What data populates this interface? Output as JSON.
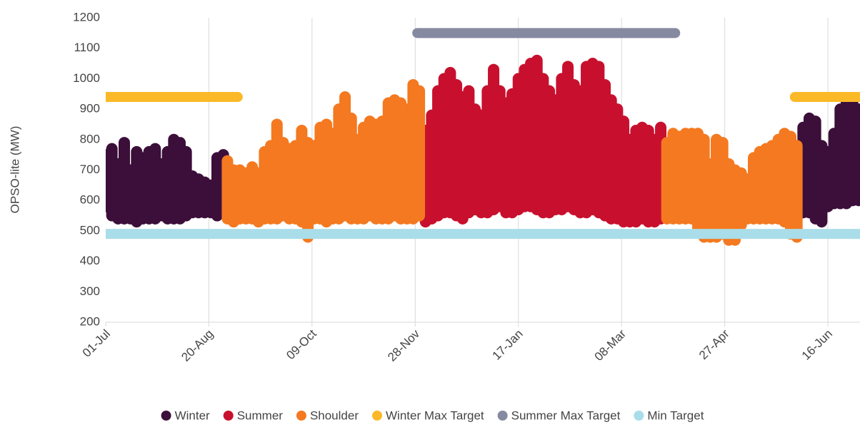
{
  "chart_data": {
    "type": "scatter",
    "y_label": "OPSO-lite (MW)",
    "xlim": [
      0,
      365
    ],
    "xticks": [
      {
        "value": 0,
        "label": "01-Jul"
      },
      {
        "value": 50,
        "label": "20-Aug"
      },
      {
        "value": 100,
        "label": "09-Oct"
      },
      {
        "value": 150,
        "label": "28-Nov"
      },
      {
        "value": 200,
        "label": "17-Jan"
      },
      {
        "value": 250,
        "label": "08-Mar"
      },
      {
        "value": 300,
        "label": "27-Apr"
      },
      {
        "value": 350,
        "label": "16-Jun"
      }
    ],
    "ylim": [
      200,
      1200
    ],
    "yticks": [
      200,
      300,
      400,
      500,
      600,
      700,
      800,
      900,
      1000,
      1100,
      1200
    ],
    "grid": "x",
    "legend": "bottom",
    "series": [
      {
        "name": "Winter",
        "color": "#3b0f3a",
        "x": [
          0,
          3,
          6,
          9,
          12,
          15,
          18,
          21,
          24,
          27,
          30,
          33,
          36,
          39,
          42,
          45,
          48,
          51,
          54,
          57,
          338,
          341,
          344,
          347,
          350,
          353,
          356,
          359,
          362,
          365
        ],
        "low": [
          580,
          550,
          540,
          540,
          540,
          530,
          540,
          540,
          540,
          550,
          540,
          540,
          540,
          550,
          560,
          560,
          560,
          560,
          550,
          560,
          560,
          560,
          540,
          530,
          580,
          590,
          590,
          590,
          600,
          600
        ],
        "high": [
          750,
          770,
          720,
          790,
          700,
          760,
          740,
          760,
          770,
          720,
          760,
          800,
          790,
          760,
          680,
          670,
          660,
          650,
          740,
          750,
          840,
          870,
          860,
          780,
          760,
          820,
          900,
          930,
          920,
          900
        ]
      },
      {
        "name": "Summer",
        "color": "#c8102e",
        "x": [
          155,
          158,
          161,
          164,
          167,
          170,
          173,
          176,
          179,
          182,
          185,
          188,
          191,
          194,
          197,
          200,
          203,
          206,
          209,
          212,
          215,
          218,
          221,
          224,
          227,
          230,
          233,
          236,
          239,
          242,
          245,
          248,
          251,
          254,
          257,
          260,
          263,
          266,
          269
        ],
        "low": [
          530,
          540,
          550,
          560,
          560,
          550,
          540,
          560,
          570,
          560,
          560,
          570,
          580,
          560,
          560,
          570,
          580,
          580,
          570,
          560,
          560,
          570,
          570,
          580,
          570,
          560,
          560,
          570,
          560,
          550,
          540,
          540,
          530,
          530,
          530,
          540,
          530,
          530,
          540
        ],
        "high": [
          830,
          880,
          960,
          1000,
          1020,
          980,
          940,
          960,
          900,
          880,
          960,
          1030,
          960,
          920,
          950,
          1000,
          1030,
          1050,
          1060,
          1000,
          960,
          930,
          1000,
          1040,
          980,
          960,
          1040,
          1050,
          1040,
          980,
          930,
          900,
          860,
          800,
          830,
          840,
          830,
          800,
          840
        ]
      },
      {
        "name": "Shoulder",
        "color": "#f47920",
        "x": [
          59,
          62,
          65,
          68,
          71,
          74,
          77,
          80,
          83,
          86,
          89,
          92,
          95,
          98,
          101,
          104,
          107,
          110,
          113,
          116,
          119,
          122,
          125,
          128,
          131,
          134,
          137,
          140,
          143,
          146,
          149,
          152,
          272,
          275,
          278,
          281,
          284,
          287,
          290,
          293,
          296,
          299,
          302,
          305,
          308,
          311,
          314,
          317,
          320,
          323,
          326,
          329,
          332,
          335
        ],
        "low": [
          540,
          530,
          540,
          540,
          540,
          530,
          540,
          540,
          540,
          550,
          540,
          540,
          530,
          480,
          540,
          540,
          530,
          540,
          540,
          550,
          540,
          540,
          540,
          550,
          540,
          540,
          540,
          550,
          540,
          540,
          540,
          550,
          540,
          540,
          540,
          540,
          540,
          500,
          480,
          480,
          480,
          490,
          470,
          470,
          520,
          540,
          540,
          540,
          540,
          540,
          540,
          530,
          490,
          480
        ],
        "high": [
          730,
          700,
          700,
          690,
          710,
          690,
          760,
          780,
          850,
          790,
          770,
          780,
          830,
          790,
          780,
          840,
          850,
          820,
          900,
          940,
          870,
          800,
          840,
          860,
          850,
          860,
          920,
          930,
          920,
          900,
          980,
          960,
          790,
          820,
          810,
          820,
          820,
          820,
          800,
          720,
          800,
          790,
          720,
          700,
          690,
          670,
          740,
          760,
          770,
          780,
          800,
          820,
          810,
          780
        ]
      },
      {
        "name": "Winter Max Target",
        "color": "#fbb928",
        "style": "line",
        "x": [
          0,
          64,
          null,
          334,
          365
        ],
        "values": [
          940,
          940,
          null,
          940,
          940
        ]
      },
      {
        "name": "Summer Max Target",
        "color": "#868aa0",
        "style": "line",
        "x": [
          151,
          276
        ],
        "values": [
          1150,
          1150
        ]
      },
      {
        "name": "Min Target",
        "color": "#a9dde9",
        "style": "line",
        "x": [
          0,
          365
        ],
        "values": [
          490,
          490
        ]
      }
    ]
  }
}
